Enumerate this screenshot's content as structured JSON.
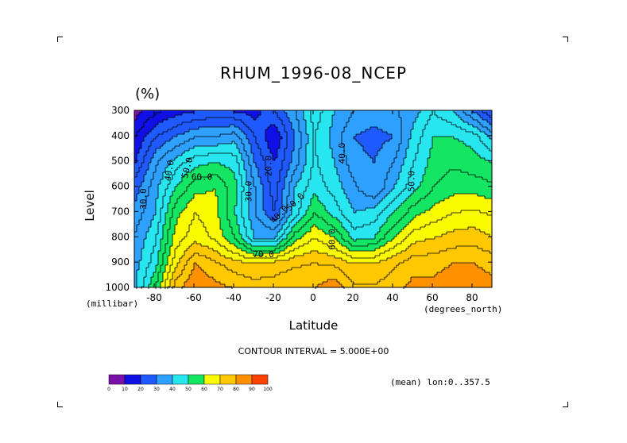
{
  "chart_data": {
    "type": "heatmap",
    "title": "RHUM_1996-08_NCEP",
    "units": "(%)",
    "xlabel": "Latitude",
    "ylabel": "Level",
    "x_unit": "(degrees_north)",
    "y_unit": "(millibar)",
    "xlim": [
      -90,
      90
    ],
    "ylim": [
      300,
      1000
    ],
    "y_inverted": true,
    "x_ticks": [
      -80,
      -60,
      -40,
      -20,
      0,
      20,
      40,
      60,
      80
    ],
    "y_ticks": [
      300,
      400,
      500,
      600,
      700,
      800,
      900,
      1000
    ],
    "x_tick_labels": [
      "-80",
      "-60",
      "-40",
      "-20",
      "0",
      "20",
      "40",
      "60",
      "80"
    ],
    "y_tick_labels": [
      "300",
      "400",
      "500",
      "600",
      "700",
      "800",
      "900",
      "1000"
    ],
    "contour_interval_text": "CONTOUR INTERVAL = 5.000E+00",
    "mean_text": "(mean) lon:0..357.5",
    "contour_labels": [
      "30.0",
      "40.0",
      "50.0",
      "60.0",
      "20.0",
      "30.0",
      "40.0",
      "50.0",
      "40.0",
      "50.0",
      "60.0",
      "70.0"
    ],
    "colorbar": {
      "boundaries": [
        0,
        10,
        20,
        30,
        40,
        50,
        60,
        70,
        80,
        90,
        100
      ],
      "labels": [
        "0",
        "10",
        "20",
        "30",
        "40",
        "50",
        "60",
        "70",
        "80",
        "90",
        "100"
      ],
      "colors": [
        "#7a10a8",
        "#1010e6",
        "#1e5aff",
        "#2ea0ff",
        "#28e6f0",
        "#14e664",
        "#fafa00",
        "#ffc800",
        "#ff9100",
        "#ff4100",
        "#ff0000"
      ]
    },
    "grid_x": [
      -90,
      -80,
      -70,
      -60,
      -50,
      -40,
      -30,
      -20,
      -10,
      0,
      10,
      20,
      30,
      40,
      50,
      60,
      70,
      80,
      90
    ],
    "grid_y": [
      300,
      400,
      500,
      600,
      700,
      800,
      900,
      1000
    ],
    "values": [
      [
        8,
        14,
        18,
        20,
        22,
        20,
        18,
        25,
        34,
        48,
        40,
        35,
        33,
        34,
        38,
        45,
        40,
        30,
        20
      ],
      [
        15,
        25,
        30,
        35,
        35,
        38,
        25,
        15,
        30,
        45,
        38,
        30,
        28,
        30,
        42,
        50,
        50,
        48,
        38
      ],
      [
        20,
        34,
        42,
        48,
        50,
        48,
        30,
        20,
        32,
        46,
        40,
        32,
        30,
        35,
        45,
        52,
        54,
        52,
        50
      ],
      [
        28,
        38,
        50,
        58,
        60,
        52,
        35,
        22,
        40,
        48,
        43,
        36,
        30,
        40,
        48,
        55,
        58,
        58,
        56
      ],
      [
        32,
        40,
        58,
        65,
        62,
        50,
        35,
        25,
        42,
        55,
        48,
        40,
        42,
        50,
        58,
        62,
        65,
        66,
        64
      ],
      [
        36,
        44,
        62,
        68,
        64,
        55,
        40,
        40,
        58,
        65,
        60,
        48,
        50,
        60,
        68,
        70,
        72,
        73,
        70
      ],
      [
        38,
        48,
        68,
        80,
        76,
        72,
        70,
        72,
        74,
        75,
        74,
        70,
        70,
        74,
        78,
        78,
        80,
        80,
        78
      ],
      [
        40,
        55,
        78,
        85,
        82,
        80,
        78,
        78,
        80,
        80,
        84,
        76,
        76,
        78,
        82,
        82,
        84,
        84,
        82
      ]
    ]
  }
}
